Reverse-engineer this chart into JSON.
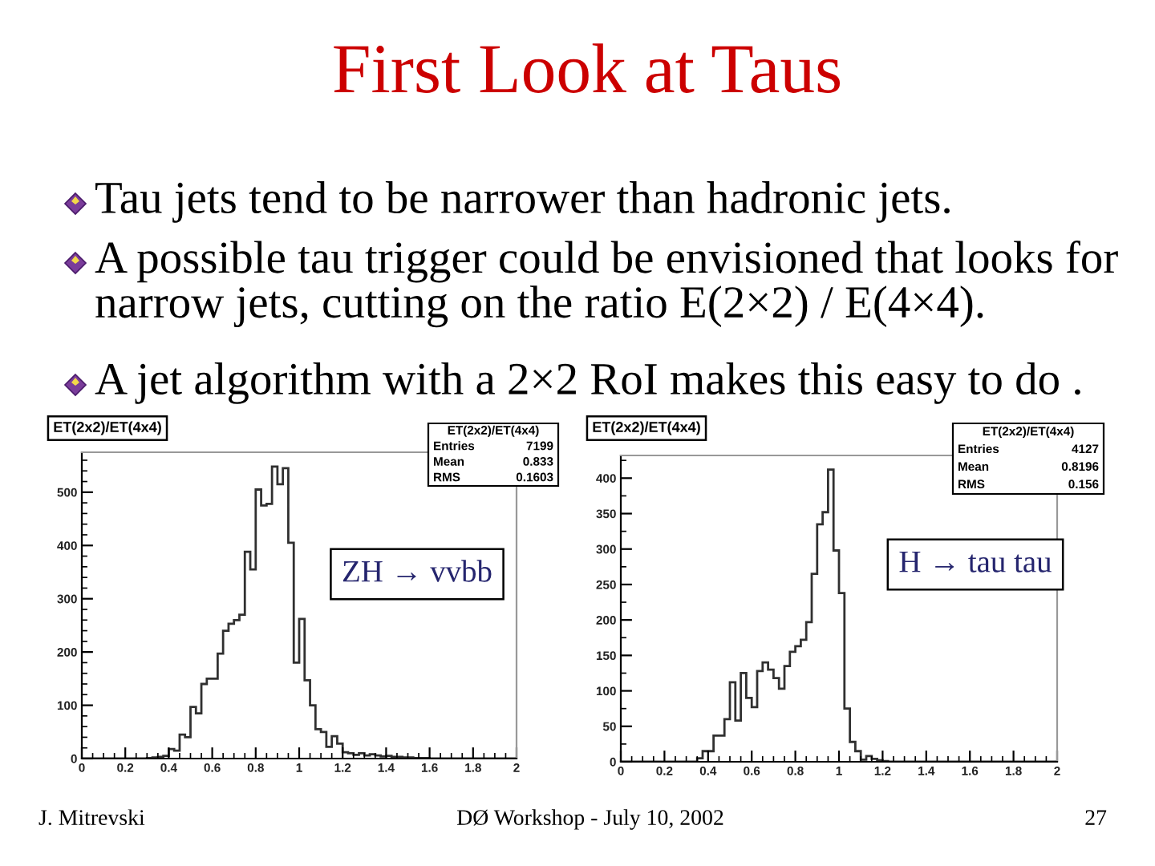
{
  "chart_data": [
    {
      "type": "other",
      "title": "First Look at Taus",
      "annotations": [
        "Tau jets tend to be narrower than hadronic jets.",
        "A possible tau trigger could be envisioned that looks for narrow jets, cutting on the ratio E(2×2) / E(4×4).",
        "A jet algorithm with a 2×2 RoI makes this easy to do .",
        "J. Mitrevski",
        "DØ Workshop - July 10, 2002",
        "27"
      ]
    },
    {
      "type": "histogram",
      "title": "ET(2x2)/ET(4x4)",
      "color": "#303030",
      "bins": [
        0,
        0.025,
        0.05,
        0.075,
        0.1,
        0.125,
        0.15,
        0.175,
        0.2,
        0.225,
        0.25,
        0.275,
        0.3,
        0.325,
        0.35,
        0.375,
        0.4,
        0.425,
        0.45,
        0.475,
        0.5,
        0.525,
        0.55,
        0.575,
        0.6,
        0.625,
        0.65,
        0.675,
        0.7,
        0.725,
        0.75,
        0.775,
        0.8,
        0.825,
        0.85,
        0.875,
        0.9,
        0.925,
        0.95,
        0.975,
        1,
        1.025,
        1.05,
        1.075,
        1.1,
        1.125,
        1.15,
        1.175,
        1.2,
        1.225,
        1.25,
        1.275,
        1.3,
        1.325,
        1.35,
        1.375,
        1.4,
        1.425,
        1.45,
        1.475,
        1.5,
        1.525,
        1.55,
        1.575,
        1.6,
        1.625,
        1.65,
        1.675,
        1.7,
        1.725,
        1.75,
        1.775,
        1.8,
        1.825,
        1.85,
        1.875,
        1.9,
        1.925,
        1.95,
        1.975,
        2
      ],
      "values": [
        0,
        0,
        0,
        0,
        0,
        0,
        0,
        0,
        0,
        0,
        0,
        0,
        1,
        2,
        3,
        5,
        18,
        15,
        45,
        40,
        97,
        85,
        140,
        150,
        150,
        197,
        240,
        253,
        260,
        270,
        388,
        355,
        505,
        475,
        478,
        548,
        515,
        545,
        405,
        180,
        262,
        147,
        100,
        55,
        50,
        22,
        42,
        28,
        12,
        10,
        7,
        10,
        6,
        8,
        6,
        4,
        5,
        3,
        3,
        2,
        2,
        1,
        1,
        1,
        0,
        0,
        0,
        0,
        0,
        0,
        0,
        0,
        0,
        0,
        0,
        0,
        0,
        0,
        0,
        0
      ],
      "xlim": [
        0,
        2
      ],
      "xticks": [
        0,
        0.2,
        0.4,
        0.6,
        0.8,
        1,
        1.2,
        1.4,
        1.6,
        1.8,
        2
      ],
      "ylim": [
        0,
        575
      ],
      "yticks": [
        0,
        100,
        200,
        300,
        400,
        500
      ],
      "annotations": [
        "ZH → vvbb",
        "ET(2x2)/ET(4x4)",
        "Entries 7199",
        "Mean 0.833",
        "RMS 0.1603"
      ]
    },
    {
      "type": "histogram",
      "title": "ET(2x2)/ET(4x4)",
      "color": "#303030",
      "bins": [
        0,
        0.025,
        0.05,
        0.075,
        0.1,
        0.125,
        0.15,
        0.175,
        0.2,
        0.225,
        0.25,
        0.275,
        0.3,
        0.325,
        0.35,
        0.375,
        0.4,
        0.425,
        0.45,
        0.475,
        0.5,
        0.525,
        0.55,
        0.575,
        0.6,
        0.625,
        0.65,
        0.675,
        0.7,
        0.725,
        0.75,
        0.775,
        0.8,
        0.825,
        0.85,
        0.875,
        0.9,
        0.925,
        0.95,
        0.975,
        1,
        1.025,
        1.05,
        1.075,
        1.1,
        1.125,
        1.15,
        1.175,
        1.2,
        1.225,
        1.25,
        1.275,
        1.3,
        1.325,
        1.35,
        1.375,
        1.4,
        1.425,
        1.45,
        1.475,
        1.5,
        1.525,
        1.55,
        1.575,
        1.6,
        1.625,
        1.65,
        1.675,
        1.7,
        1.725,
        1.75,
        1.775,
        1.8,
        1.825,
        1.85,
        1.875,
        1.9,
        1.925,
        1.95,
        1.975,
        2
      ],
      "values": [
        0,
        0,
        0,
        0,
        0,
        0,
        0,
        0,
        0,
        0,
        0,
        0,
        0,
        0,
        5,
        15,
        15,
        37,
        37,
        60,
        112,
        58,
        125,
        90,
        77,
        128,
        140,
        130,
        118,
        103,
        135,
        155,
        163,
        172,
        197,
        265,
        335,
        352,
        412,
        298,
        238,
        75,
        28,
        15,
        3,
        8,
        4,
        2,
        1,
        0,
        0,
        0,
        0,
        0,
        0,
        0,
        0,
        0,
        0,
        0,
        0,
        0,
        0,
        0,
        0,
        0,
        0,
        0,
        0,
        0,
        0,
        0,
        0,
        0,
        0,
        0,
        0,
        0,
        0,
        0
      ],
      "xlim": [
        0,
        2
      ],
      "xticks": [
        0,
        0.2,
        0.4,
        0.6,
        0.8,
        1,
        1.2,
        1.4,
        1.6,
        1.8,
        2
      ],
      "ylim": [
        0,
        432
      ],
      "yticks": [
        0,
        50,
        100,
        150,
        200,
        250,
        300,
        350,
        400
      ],
      "annotations": [
        "H → tau tau",
        "ET(2x2)/ET(4x4)",
        "Entries 4127",
        "Mean 0.8196",
        "RMS 0.156"
      ]
    }
  ]
}
